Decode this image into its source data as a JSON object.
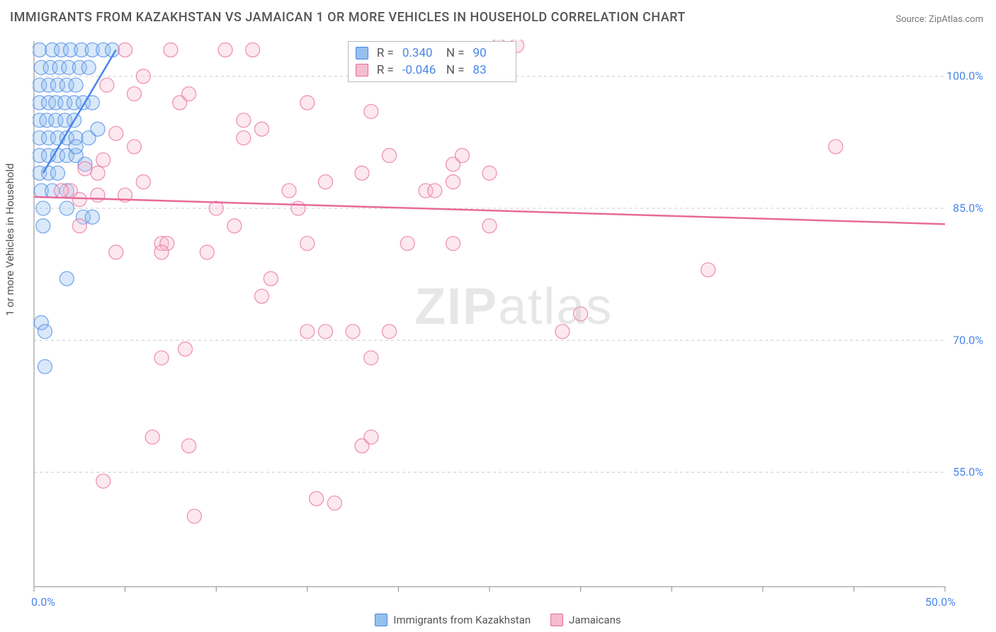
{
  "title": "IMMIGRANTS FROM KAZAKHSTAN VS JAMAICAN 1 OR MORE VEHICLES IN HOUSEHOLD CORRELATION CHART",
  "source": "Source: ZipAtlas.com",
  "y_axis_label": "1 or more Vehicles in Household",
  "watermark": {
    "bold": "ZIP",
    "rest": "atlas"
  },
  "chart": {
    "type": "scatter",
    "xlim": [
      0,
      50
    ],
    "ylim": [
      42,
      104
    ],
    "x_ticks": [
      {
        "value": 0,
        "label": "0.0%"
      },
      {
        "value": 50,
        "label": "50.0%"
      }
    ],
    "y_ticks": [
      {
        "value": 55,
        "label": "55.0%"
      },
      {
        "value": 70,
        "label": "70.0%"
      },
      {
        "value": 85,
        "label": "85.0%"
      },
      {
        "value": 100,
        "label": "100.0%"
      }
    ],
    "grid_color": "#cccccc",
    "axis_color": "#888888",
    "background_color": "#ffffff",
    "marker_radius": 10,
    "marker_opacity": 0.35,
    "marker_stroke_width": 1.3,
    "series": [
      {
        "name": "Immigrants from Kazakhstan",
        "color_fill": "#93c0ed",
        "color_stroke": "#4a86e8",
        "R": "0.340",
        "N": "90",
        "trend": {
          "x1": 0.5,
          "y1": 89,
          "x2": 4.5,
          "y2": 103
        },
        "points": [
          [
            0.3,
            103
          ],
          [
            1.0,
            103
          ],
          [
            1.5,
            103
          ],
          [
            2.0,
            103
          ],
          [
            2.6,
            103
          ],
          [
            3.2,
            103
          ],
          [
            3.8,
            103
          ],
          [
            4.3,
            103
          ],
          [
            0.4,
            101
          ],
          [
            0.9,
            101
          ],
          [
            1.4,
            101
          ],
          [
            1.9,
            101
          ],
          [
            2.5,
            101
          ],
          [
            3.0,
            101
          ],
          [
            0.3,
            99
          ],
          [
            0.8,
            99
          ],
          [
            1.3,
            99
          ],
          [
            1.8,
            99
          ],
          [
            2.3,
            99
          ],
          [
            0.3,
            97
          ],
          [
            0.8,
            97
          ],
          [
            1.2,
            97
          ],
          [
            1.7,
            97
          ],
          [
            2.2,
            97
          ],
          [
            2.7,
            97
          ],
          [
            3.2,
            97
          ],
          [
            0.3,
            95
          ],
          [
            0.7,
            95
          ],
          [
            1.2,
            95
          ],
          [
            1.7,
            95
          ],
          [
            2.2,
            95
          ],
          [
            0.3,
            93
          ],
          [
            0.8,
            93
          ],
          [
            1.3,
            93
          ],
          [
            1.8,
            93
          ],
          [
            2.3,
            93
          ],
          [
            3.0,
            93
          ],
          [
            3.5,
            94
          ],
          [
            0.3,
            91
          ],
          [
            0.8,
            91
          ],
          [
            1.3,
            91
          ],
          [
            1.8,
            91
          ],
          [
            2.3,
            91
          ],
          [
            0.3,
            89
          ],
          [
            0.8,
            89
          ],
          [
            1.3,
            89
          ],
          [
            2.3,
            92
          ],
          [
            2.8,
            90
          ],
          [
            0.4,
            87
          ],
          [
            1.0,
            87
          ],
          [
            1.8,
            87
          ],
          [
            0.5,
            85
          ],
          [
            1.8,
            85
          ],
          [
            0.5,
            83
          ],
          [
            2.7,
            84
          ],
          [
            3.2,
            84
          ],
          [
            1.8,
            77
          ],
          [
            0.4,
            72
          ],
          [
            0.6,
            71
          ],
          [
            0.6,
            67
          ]
        ]
      },
      {
        "name": "Jamaicans",
        "color_fill": "#f6bcd0",
        "color_stroke": "#e86a9a",
        "R": "-0.046",
        "N": "83",
        "trend": {
          "x1": 0,
          "y1": 86.3,
          "x2": 50,
          "y2": 83.2
        },
        "points": [
          [
            5,
            103
          ],
          [
            7.5,
            103
          ],
          [
            10.5,
            103
          ],
          [
            12,
            103
          ],
          [
            25.5,
            103.5
          ],
          [
            8,
            97
          ],
          [
            8.5,
            98
          ],
          [
            11.5,
            95
          ],
          [
            11.5,
            93
          ],
          [
            12.5,
            94
          ],
          [
            15,
            97
          ],
          [
            6,
            88
          ],
          [
            14,
            87
          ],
          [
            16,
            88
          ],
          [
            18,
            89
          ],
          [
            18.5,
            96
          ],
          [
            19.5,
            91
          ],
          [
            23,
            90
          ],
          [
            21.5,
            87
          ],
          [
            25,
            89
          ],
          [
            26.5,
            103.5
          ],
          [
            3.5,
            89
          ],
          [
            3.8,
            90.5
          ],
          [
            2.8,
            89.5
          ],
          [
            2,
            87
          ],
          [
            5,
            86.5
          ],
          [
            7,
            81
          ],
          [
            7.3,
            81
          ],
          [
            7,
            80
          ],
          [
            9.5,
            80
          ],
          [
            12.5,
            75
          ],
          [
            13,
            77
          ],
          [
            14.5,
            85
          ],
          [
            15,
            81
          ],
          [
            20.5,
            81
          ],
          [
            23,
            81
          ],
          [
            2.5,
            83
          ],
          [
            4.5,
            80
          ],
          [
            15,
            71
          ],
          [
            16,
            71
          ],
          [
            17.5,
            71
          ],
          [
            18.5,
            68
          ],
          [
            19.5,
            71
          ],
          [
            7,
            68
          ],
          [
            8.3,
            69
          ],
          [
            6.5,
            59
          ],
          [
            8.5,
            58
          ],
          [
            18,
            58
          ],
          [
            18.5,
            59
          ],
          [
            15.5,
            52
          ],
          [
            16.5,
            51.5
          ],
          [
            8.8,
            50
          ],
          [
            3.8,
            54
          ],
          [
            23,
            88
          ],
          [
            22,
            87
          ],
          [
            23.5,
            91
          ],
          [
            29,
            71
          ],
          [
            30,
            73
          ],
          [
            44,
            92
          ],
          [
            37,
            78
          ],
          [
            1.5,
            87
          ],
          [
            2.5,
            86
          ],
          [
            3.5,
            86.5
          ],
          [
            4,
            99
          ],
          [
            5.5,
            98
          ],
          [
            6,
            100
          ],
          [
            5.5,
            92
          ],
          [
            4.5,
            93.5
          ],
          [
            10,
            85
          ],
          [
            11,
            83
          ],
          [
            25,
            83
          ]
        ]
      }
    ]
  },
  "stats_legend": {
    "R_label": "R =",
    "N_label": "N ="
  },
  "bottom_legend": [
    {
      "label": "Immigrants from Kazakhstan",
      "swatch_fill": "#93c0ed",
      "swatch_stroke": "#4a86e8"
    },
    {
      "label": "Jamaicans",
      "swatch_fill": "#f6bcd0",
      "swatch_stroke": "#e86a9a"
    }
  ]
}
